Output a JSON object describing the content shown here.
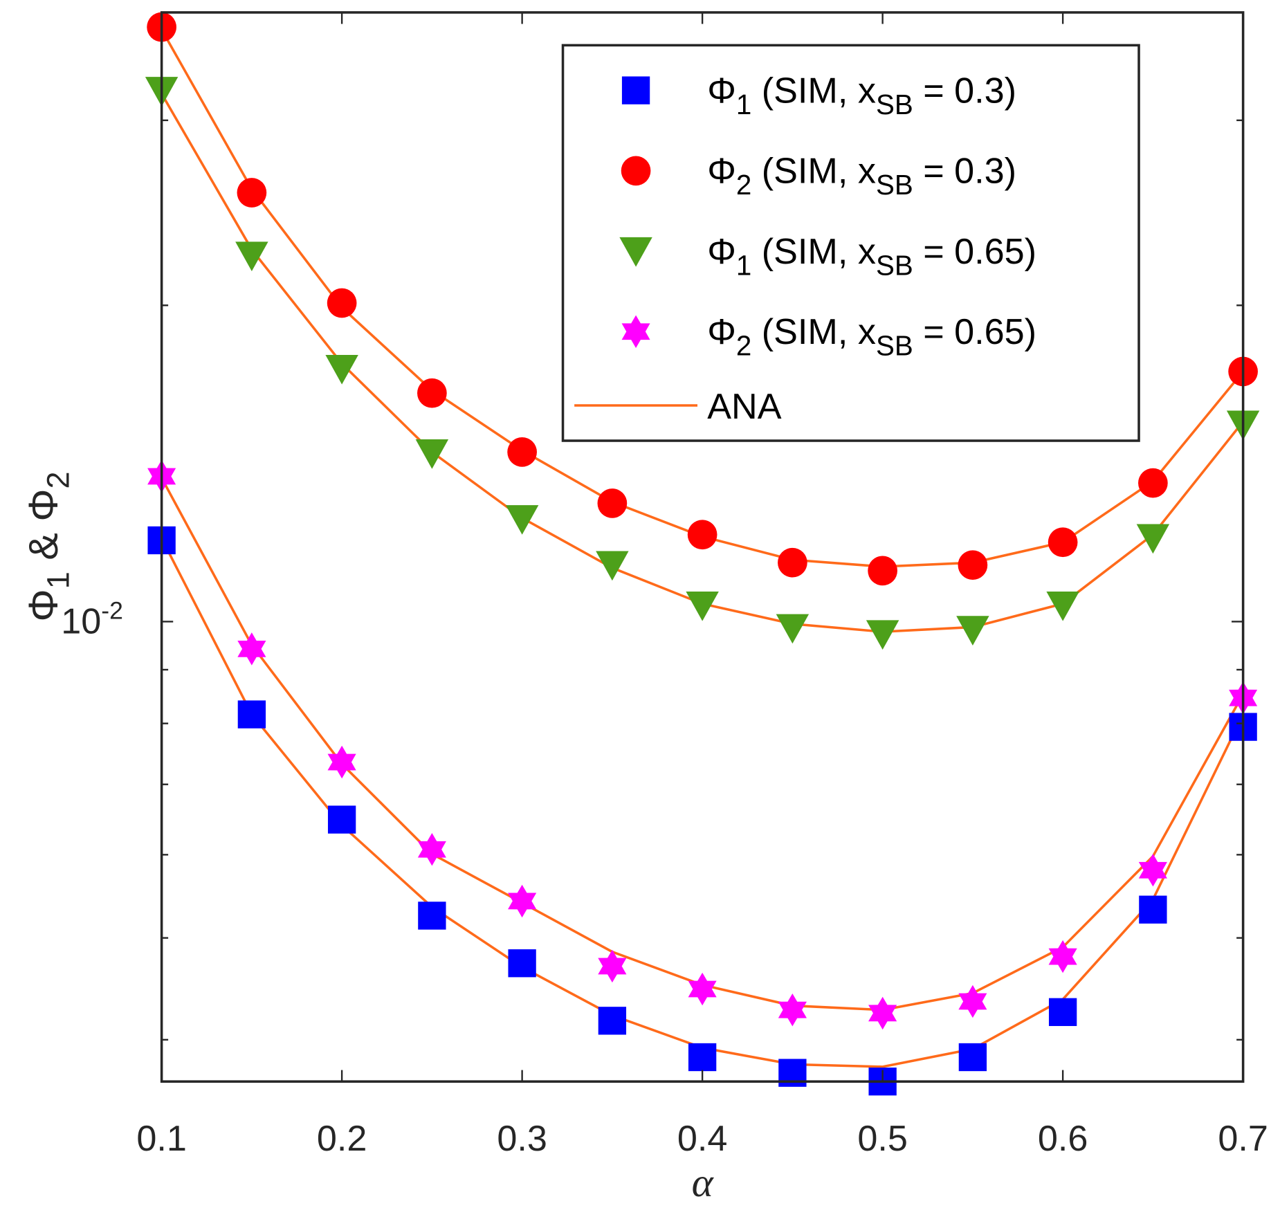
{
  "chart_data": {
    "type": "scatter",
    "xlabel": "α",
    "ylabel": "Φ1 & Φ2",
    "ylabel_parts": {
      "a": "Φ",
      "a_sub": "1",
      "mid": " & ",
      "b": "Φ",
      "b_sub": "2"
    },
    "xlim": [
      0.1,
      0.7
    ],
    "ylim": [
      0.00365,
      0.038
    ],
    "yscale": "log",
    "grid": false,
    "legend_position": "top-right",
    "x_ticks": [
      "0.1",
      "0.2",
      "0.3",
      "0.4",
      "0.5",
      "0.6",
      "0.7"
    ],
    "y_tick_label": {
      "base": "10",
      "exp": "-2"
    },
    "x": [
      0.1,
      0.15,
      0.2,
      0.25,
      0.3,
      0.35,
      0.4,
      0.45,
      0.5,
      0.55,
      0.6,
      0.65,
      0.7
    ],
    "series": [
      {
        "name": "Φ1 (SIM, xSB = 0.3)",
        "legend": {
          "sym": "Φ",
          "sub": "1",
          "pre": " (SIM, x",
          "sub2": "SB",
          "post": " = 0.3)"
        },
        "marker": "square",
        "color": "#0000ff",
        "values": [
          0.01195,
          0.00816,
          0.00648,
          0.00525,
          0.00473,
          0.00417,
          0.00385,
          0.00372,
          0.00365,
          0.00385,
          0.00425,
          0.00532,
          0.00794
        ]
      },
      {
        "name": "Φ2 (SIM, xSB = 0.3)",
        "legend": {
          "sym": "Φ",
          "sub": "2",
          "pre": " (SIM, x",
          "sub2": "SB",
          "post": " = 0.3)"
        },
        "marker": "circle",
        "color": "#ff0000",
        "values": [
          0.0368,
          0.0256,
          0.0201,
          0.0165,
          0.0145,
          0.01296,
          0.0121,
          0.01138,
          0.01118,
          0.01132,
          0.0119,
          0.01355,
          0.0173
        ]
      },
      {
        "name": "Φ1 (SIM, xSB = 0.65)",
        "legend": {
          "sym": "Φ",
          "sub": "1",
          "pre": " (SIM, x",
          "sub2": "SB",
          "post": " = 0.65)"
        },
        "marker": "triangle-down",
        "color": "#4da01a",
        "values": [
          0.032,
          0.0223,
          0.0174,
          0.01446,
          0.01252,
          0.01132,
          0.01036,
          0.00986,
          0.00973,
          0.00982,
          0.01036,
          0.01201,
          0.0154
        ]
      },
      {
        "name": "Φ2 (SIM, xSB = 0.65)",
        "legend": {
          "sym": "Φ",
          "sub": "2",
          "pre": " (SIM, x",
          "sub2": "SB",
          "post": " = 0.65)"
        },
        "marker": "hexagram",
        "color": "#ff00ff",
        "values": [
          0.01375,
          0.00942,
          0.00735,
          0.00607,
          0.00542,
          0.0047,
          0.00447,
          0.00427,
          0.00424,
          0.00435,
          0.0048,
          0.0058,
          0.00846
        ]
      }
    ],
    "ana": {
      "name": "ANA",
      "color": "#ff6a1a",
      "curves": [
        [
          0.012,
          0.00816,
          0.0064,
          0.00535,
          0.00469,
          0.00422,
          0.00393,
          0.00379,
          0.00377,
          0.00392,
          0.00437,
          0.00544,
          0.00816
        ],
        [
          0.0366,
          0.0258,
          0.0199,
          0.0166,
          0.01455,
          0.013,
          0.01205,
          0.01145,
          0.01128,
          0.01138,
          0.0119,
          0.0136,
          0.0173
        ],
        [
          0.0318,
          0.0226,
          0.0176,
          0.0145,
          0.01255,
          0.01125,
          0.0104,
          0.00995,
          0.00978,
          0.00988,
          0.0104,
          0.0121,
          0.0155
        ],
        [
          0.0137,
          0.0095,
          0.00732,
          0.00601,
          0.0054,
          0.00485,
          0.00451,
          0.00431,
          0.00427,
          0.00443,
          0.0049,
          0.00598,
          0.00853
        ]
      ]
    }
  }
}
